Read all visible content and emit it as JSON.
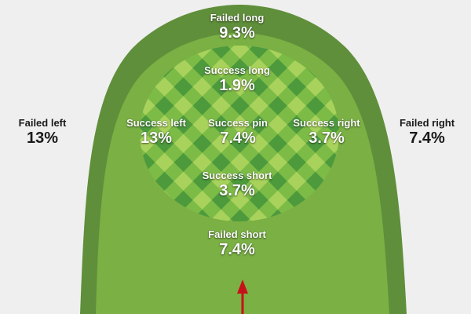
{
  "colors": {
    "background": "#efefef",
    "fringe": "#5f8f3a",
    "fairway": "#7ab044",
    "green_light": "#a8d25c",
    "green_mid": "#7dbb47",
    "green_dark": "#4d9a3d",
    "arrow": "#c8101a"
  },
  "zones": {
    "failed_long": {
      "label": "Failed long",
      "value": "9.3%"
    },
    "failed_left": {
      "label": "Failed left",
      "value": "13%"
    },
    "failed_right": {
      "label": "Failed right",
      "value": "7.4%"
    },
    "failed_short": {
      "label": "Failed short",
      "value": "7.4%"
    },
    "success_long": {
      "label": "Success long",
      "value": "1.9%"
    },
    "success_left": {
      "label": "Success left",
      "value": "13%"
    },
    "success_pin": {
      "label": "Success pin",
      "value": "7.4%"
    },
    "success_right": {
      "label": "Success right",
      "value": "3.7%"
    },
    "success_short": {
      "label": "Success short",
      "value": "3.7%"
    }
  },
  "icons": {
    "approach_arrow": "arrow-up-icon"
  }
}
